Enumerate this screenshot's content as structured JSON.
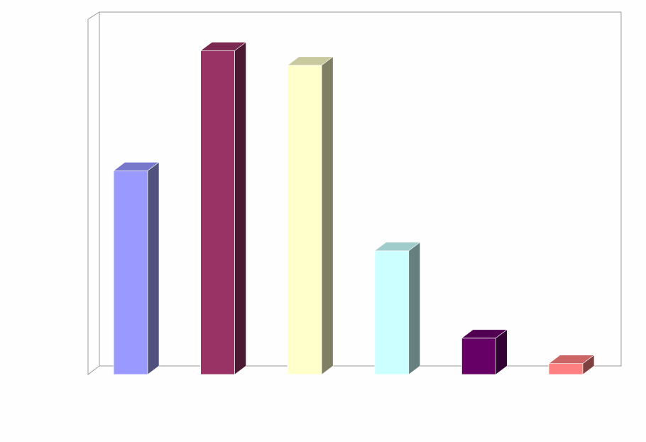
{
  "chart_data": {
    "type": "bar",
    "style": "3d-column",
    "title": "",
    "xlabel": "",
    "ylabel": "",
    "grid": false,
    "legend": "none",
    "ylim": [
      0,
      100
    ],
    "categories": [
      "",
      "",
      "",
      "",
      "",
      ""
    ],
    "values": [
      56,
      89,
      85,
      34,
      10,
      3
    ],
    "colors": [
      {
        "front": "#9999ff",
        "top": "#7777cc",
        "side": "#52527f"
      },
      {
        "front": "#993366",
        "top": "#7a2951",
        "side": "#4c1933"
      },
      {
        "front": "#ffffcc",
        "top": "#c9c9a0",
        "side": "#7f7f66"
      },
      {
        "front": "#ccffff",
        "top": "#a0cccc",
        "side": "#667f7f"
      },
      {
        "front": "#660066",
        "top": "#510051",
        "side": "#330033"
      },
      {
        "front": "#ff8080",
        "top": "#cc6666",
        "side": "#7f4040"
      }
    ]
  }
}
